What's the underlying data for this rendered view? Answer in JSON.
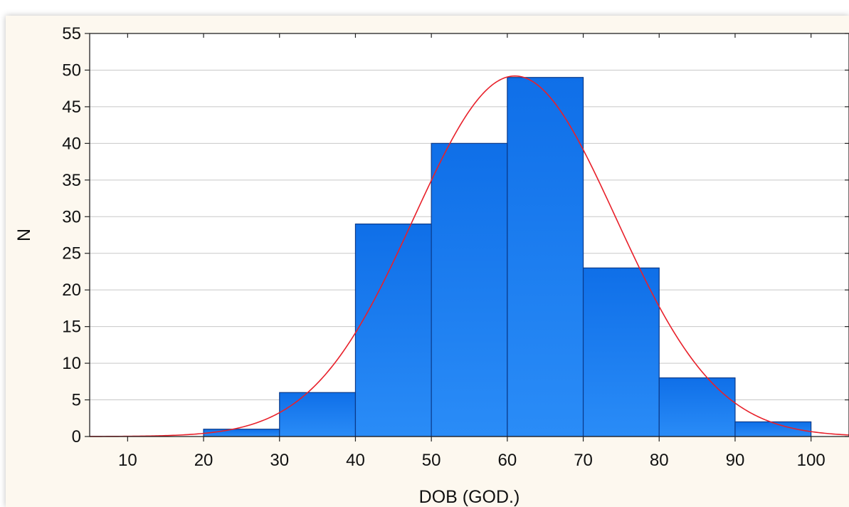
{
  "chart_data": {
    "type": "bar",
    "subtype": "histogram",
    "xlabel": "DOB (GOD.)",
    "ylabel": "N",
    "xlim": [
      5,
      105
    ],
    "ylim": [
      0,
      55
    ],
    "xticks": [
      10,
      20,
      30,
      40,
      50,
      60,
      70,
      80,
      90,
      100
    ],
    "yticks": [
      0,
      5,
      10,
      15,
      20,
      25,
      30,
      35,
      40,
      45,
      50,
      55
    ],
    "bins": [
      {
        "from": 20,
        "to": 30,
        "value": 1
      },
      {
        "from": 30,
        "to": 40,
        "value": 6
      },
      {
        "from": 40,
        "to": 50,
        "value": 29
      },
      {
        "from": 50,
        "to": 60,
        "value": 40
      },
      {
        "from": 60,
        "to": 70,
        "value": 49
      },
      {
        "from": 70,
        "to": 80,
        "value": 23
      },
      {
        "from": 80,
        "to": 90,
        "value": 8
      },
      {
        "from": 90,
        "to": 100,
        "value": 2
      }
    ],
    "normal_fit": {
      "mean": 61,
      "sd": 13.3,
      "peak": 49.2
    },
    "grid": "horizontal",
    "legend": "none",
    "colors": {
      "bar": "#1a7cf2",
      "bar_border": "#0a3a8a",
      "curve": "#e8202a",
      "grid": "#c8c8c8",
      "background": "#ffffff",
      "frame": "#fdf8ef"
    }
  }
}
